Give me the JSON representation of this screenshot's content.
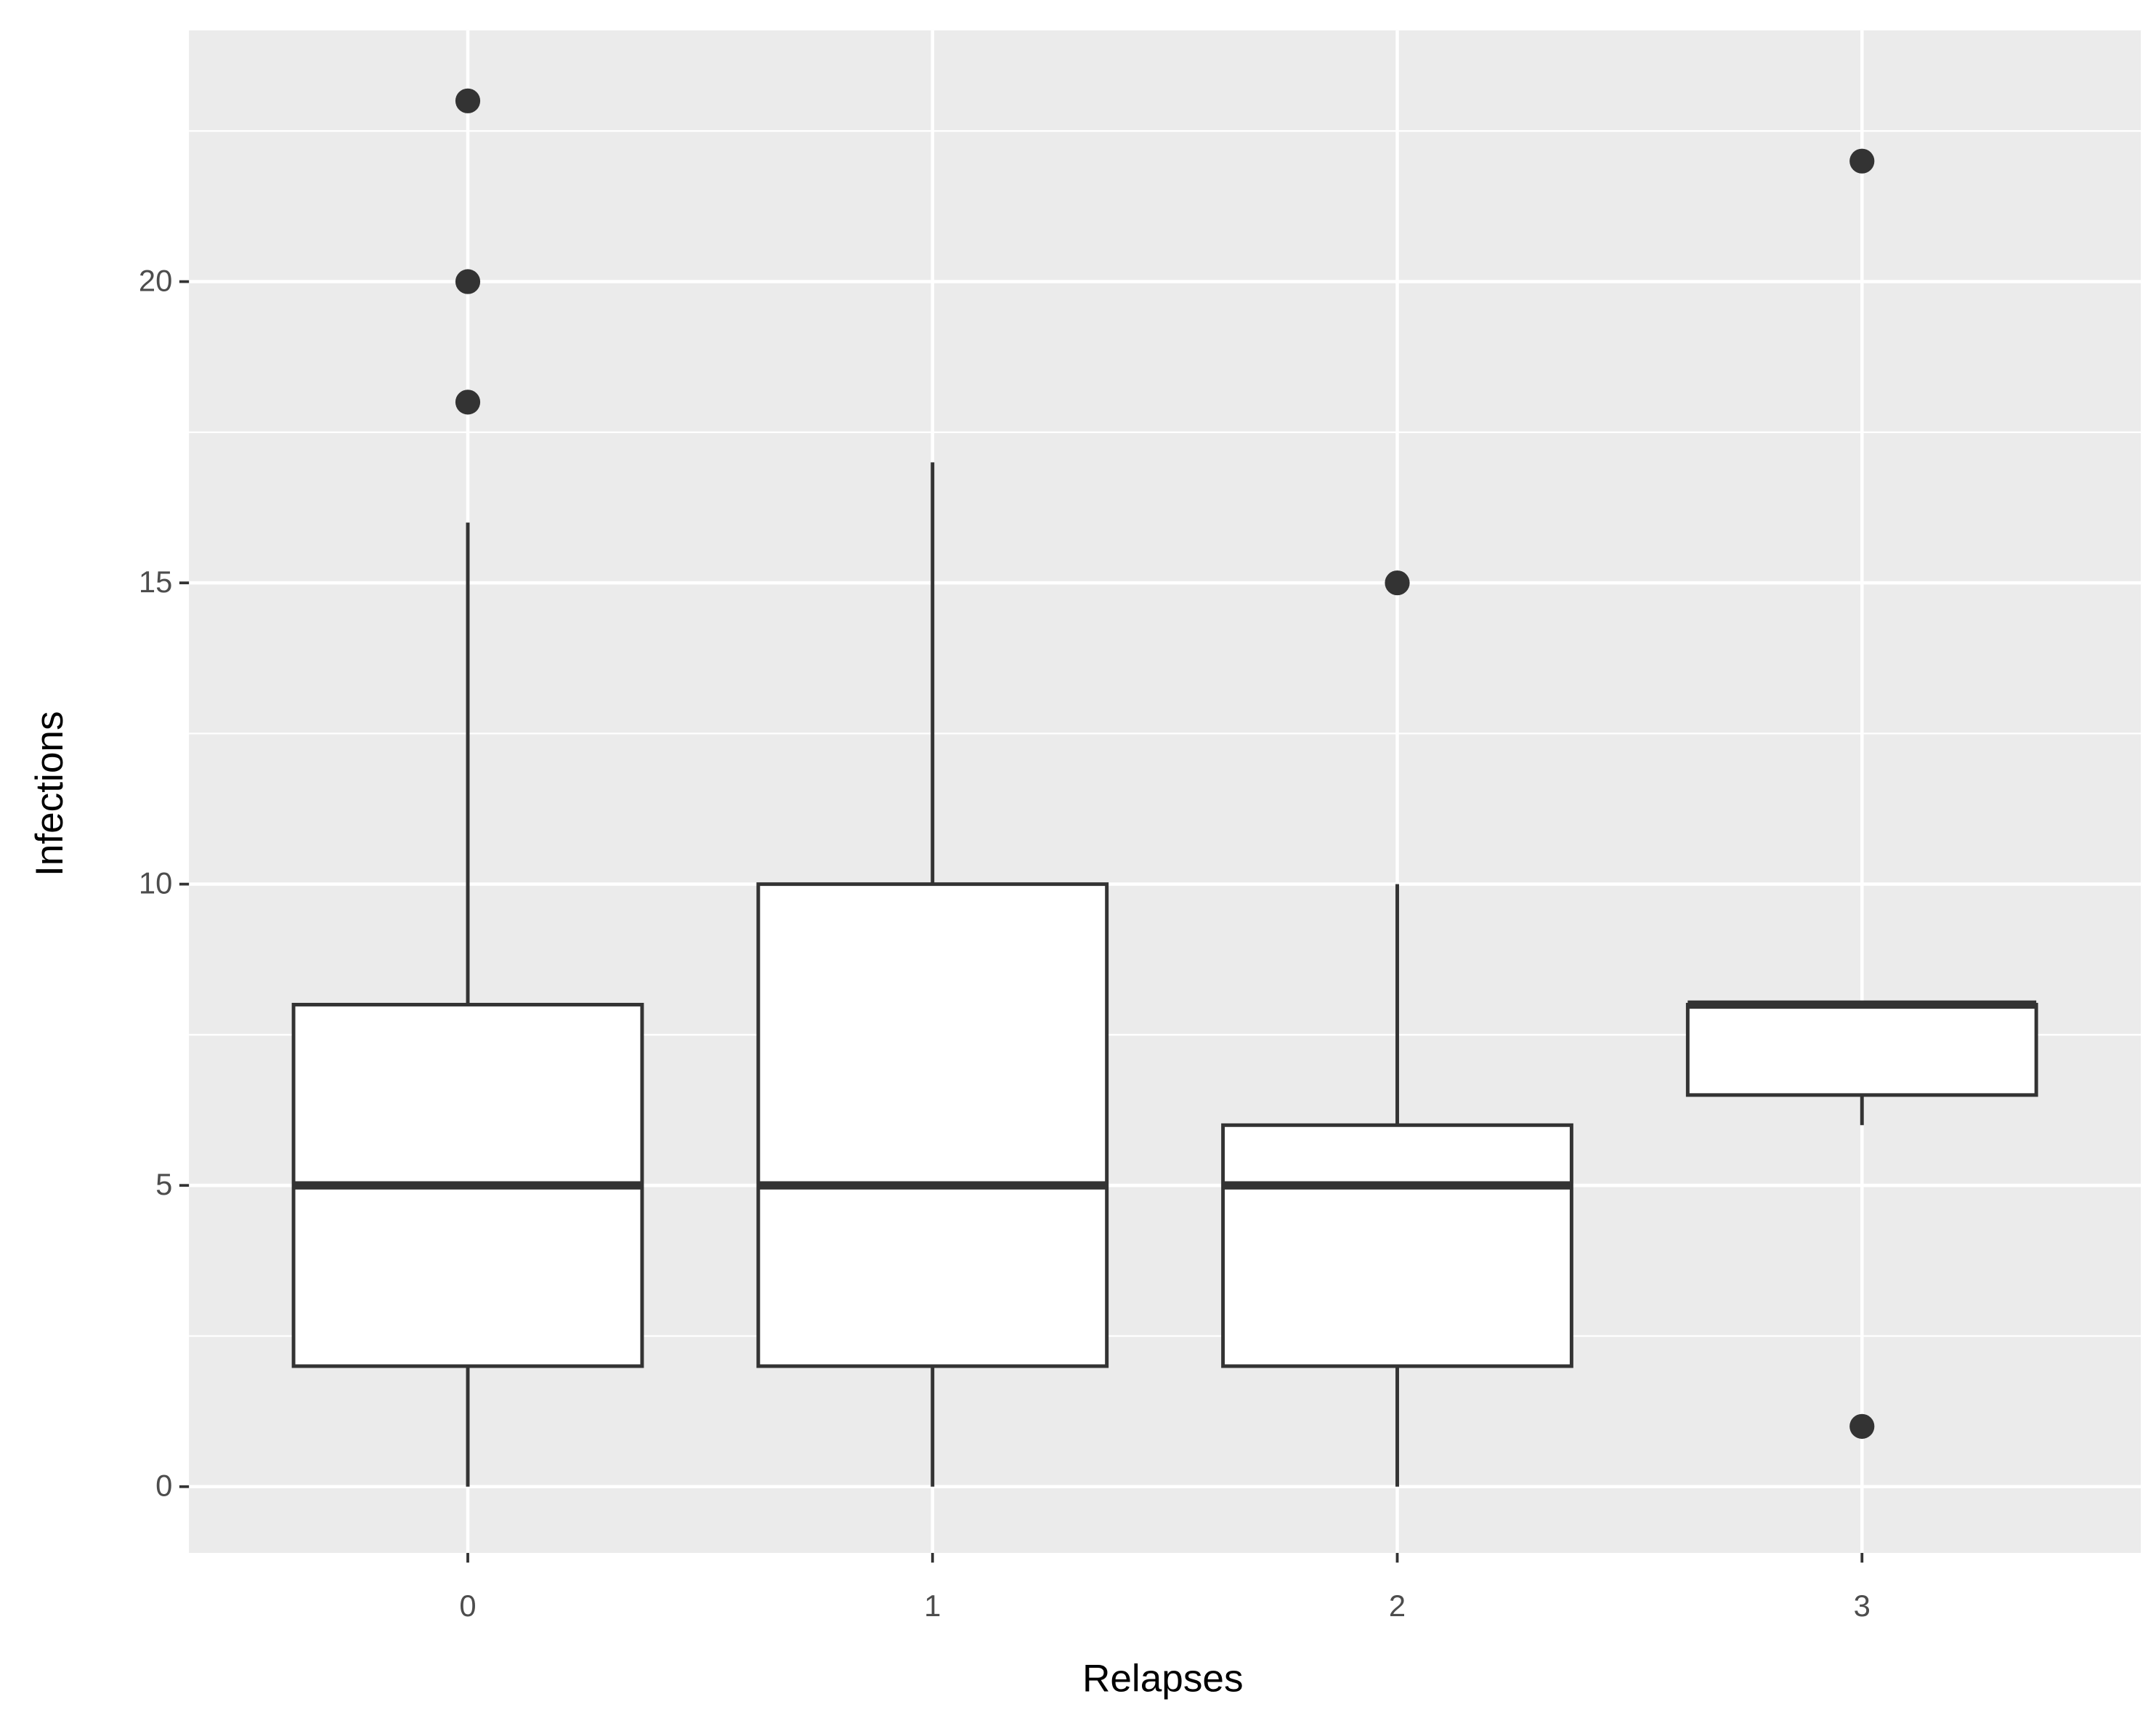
{
  "chart_data": {
    "type": "box",
    "x_label": "Relapses",
    "y_label": "Infections",
    "categories": [
      "0",
      "1",
      "2",
      "3"
    ],
    "boxes": [
      {
        "min": 0,
        "q1": 2,
        "median": 5,
        "q3": 8,
        "max": 16,
        "outliers": [
          18,
          20,
          23
        ]
      },
      {
        "min": 0,
        "q1": 2,
        "median": 5,
        "q3": 10,
        "max": 17,
        "outliers": []
      },
      {
        "min": 0,
        "q1": 2,
        "median": 5,
        "q3": 6,
        "max": 10,
        "outliers": [
          15
        ]
      },
      {
        "min": 6,
        "q1": 6.5,
        "median": 8,
        "q3": 8,
        "max": 8,
        "outliers": [
          1,
          22
        ]
      }
    ],
    "color": "#333333",
    "fill": "#ffffff",
    "ylim": [
      -1.1,
      24.17
    ],
    "yticks": [
      0,
      5,
      10,
      15,
      20
    ],
    "minor_yticks": [
      2.5,
      7.5,
      12.5,
      17.5,
      22.5
    ],
    "grid": true,
    "panel_color": "#ebebeb"
  }
}
